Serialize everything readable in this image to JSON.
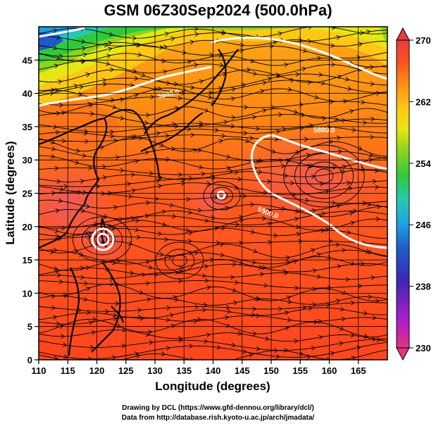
{
  "title": "GSM 06Z30Sep2024 (500.0hPa)",
  "map": {
    "xlabel": "Longitude (degrees)",
    "ylabel": "Latitude (degrees)",
    "x_ticks": [
      "110",
      "115",
      "120",
      "125",
      "130",
      "135",
      "140",
      "145",
      "150",
      "155",
      "160",
      "165"
    ],
    "y_ticks": [
      "0",
      "5",
      "10",
      "15",
      "20",
      "25",
      "30",
      "35",
      "40",
      "45"
    ],
    "xlim": [
      110,
      170
    ],
    "ylim": [
      0,
      50
    ],
    "grid": true,
    "field": "temperature (K), shaded, with wind streamlines",
    "contour_labels": [
      "5880.0",
      "5880.0",
      "5900.0"
    ]
  },
  "colorbar": {
    "ticks": [
      "270",
      "262",
      "254",
      "246",
      "238",
      "230"
    ],
    "range": [
      230,
      270
    ],
    "colors": [
      "#e2337e",
      "#b41ec8",
      "#3c28b4",
      "#1e5ac8",
      "#1ea0e0",
      "#28c8b4",
      "#32c83c",
      "#8cd21e",
      "#e6e614",
      "#ffc814",
      "#ff8c14",
      "#ff501e",
      "#e83c3c"
    ]
  },
  "credits": {
    "line1": "Drawing by DCL (https://www.gfd-dennou.org/library/dcl/)",
    "line2": "Data from http://database.rish.kyoto-u.ac.jp/arch/jmadata/"
  }
}
